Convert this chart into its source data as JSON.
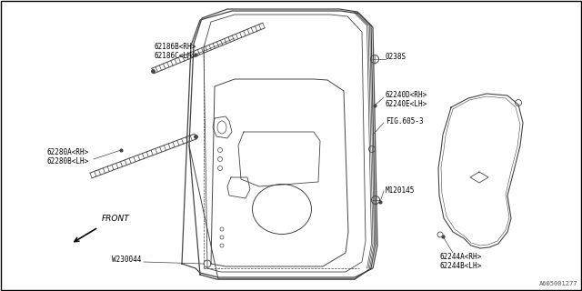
{
  "background_color": "#ffffff",
  "border_color": "#000000",
  "line_color": "#444444",
  "text_color": "#000000",
  "fig_width": 6.4,
  "fig_height": 3.2,
  "dpi": 100,
  "watermark": "A605001277",
  "labels": {
    "part_62186": "62186B<RH>\n62186C<LH>",
    "part_62280": "62280A<RH>\n62280B<LH>",
    "part_0238S": "0238S",
    "part_62240": "62240D<RH>\n62240E<LH>",
    "part_FIG": "FIG.605-3",
    "part_M120145": "M120145",
    "part_W230044": "W230044",
    "part_62244": "62244A<RH>\n62244B<LH>",
    "front_label": "FRONT"
  }
}
